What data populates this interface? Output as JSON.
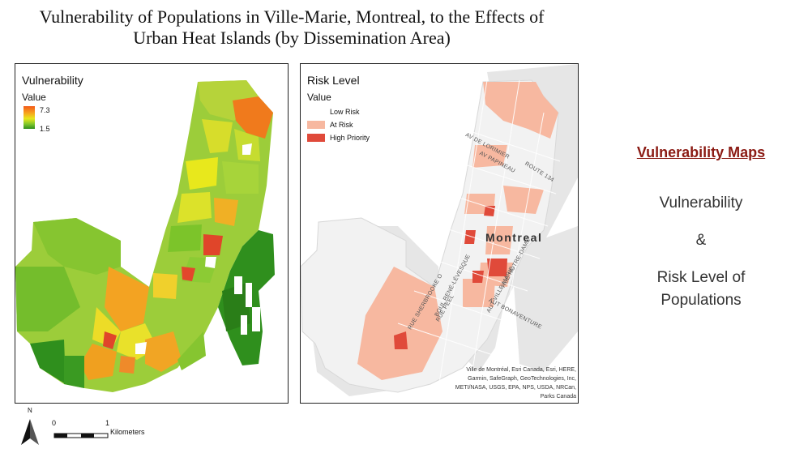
{
  "title": {
    "line1": "Vulnerability of Populations in Ville-Marie, Montreal, to the Effects of",
    "line2": "Urban Heat Islands (by Dissemination Area)"
  },
  "vulnerability_map": {
    "legend_title": "Vulnerability",
    "legend_sub": "Value",
    "max_label": "7.3",
    "min_label": "1.5",
    "gradient_colors": [
      "#f35a1a",
      "#f7a31d",
      "#e8e81c",
      "#7cc42a",
      "#2f8f1d"
    ]
  },
  "risk_map": {
    "legend_title": "Risk Level",
    "legend_sub": "Value",
    "classes": [
      {
        "label": "Low Risk",
        "color": "#ffffff"
      },
      {
        "label": "At Risk",
        "color": "#f7b8a0"
      },
      {
        "label": "High Priority",
        "color": "#e04a3a"
      }
    ],
    "city_label": "Montreal",
    "street_labels": [
      "AV DE LORIMIER",
      "AV PAPINEAU",
      "ROUTE 134",
      "RUE SHERBROOKE O",
      "BOUL RENÉ-LÉVESQUE",
      "AUT VILLE MARIE",
      "RUE PEEL",
      "RUE NOTRE-DAME",
      "AUT BONAVENTURE"
    ],
    "attribution": "Ville de Montréal, Esri Canada, Esri, HERE, Garmin, SafeGraph, GeoTechnologies, Inc, METI/NASA, USGS, EPA, NPS, USDA, NRCan, Parks Canada"
  },
  "right_panel": {
    "heading": "Vulnerability Maps",
    "line1": "Vulnerability",
    "line2": "&",
    "line3": "Risk Level of",
    "line4": "Populations"
  },
  "scale": {
    "north": "N",
    "zero": "0",
    "one": "1",
    "unit": "Kilometers"
  }
}
